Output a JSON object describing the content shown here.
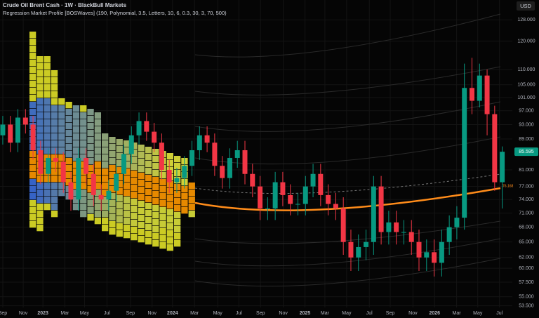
{
  "chart_data": {
    "type": "candlestick",
    "title": "Crude Oil Brent Cash · 1W · BlackBull Markets",
    "subtitle": "Regression Market Profile [BOSWaves] (190, Polynomial, 3.5, Letters, 10, 6, 0.3, 30, 3, 70, 500)",
    "currency": "USD",
    "last_price_label": "85.595",
    "regression_label": "76.168",
    "log_scale": true,
    "up_color": "#089981",
    "down_color": "#f23645",
    "x": [
      0,
      3,
      6,
      9,
      12,
      15,
      18,
      21,
      24,
      27,
      30,
      33,
      36,
      39,
      42,
      45,
      48,
      51,
      54,
      57,
      60,
      63,
      66,
      69,
      72,
      75,
      78,
      81,
      84,
      87,
      90,
      93,
      96,
      99,
      102,
      105,
      108,
      111,
      114,
      117,
      120,
      123,
      126,
      129,
      132,
      135,
      138,
      141,
      144,
      147,
      150,
      153,
      156,
      159,
      162,
      165,
      168,
      171,
      174,
      177,
      180,
      183,
      186,
      189,
      192,
      195,
      198
    ],
    "open": [
      90,
      93,
      88,
      95,
      93,
      86,
      80,
      84,
      83,
      78,
      74,
      84,
      80,
      75,
      74,
      76,
      80,
      85,
      90,
      94,
      91,
      88,
      81,
      78,
      79,
      82,
      86,
      90,
      88,
      82,
      79,
      84,
      86,
      80,
      77,
      72,
      72,
      78,
      75,
      73,
      73,
      77,
      80,
      75,
      73,
      72,
      65,
      62,
      64,
      65,
      77,
      67,
      69,
      67,
      67,
      65,
      62,
      63,
      61,
      65,
      68,
      70,
      104,
      100,
      108,
      96,
      78
    ],
    "high": [
      95.5,
      95.5,
      97.5,
      97.5,
      95.5,
      88.5,
      86.5,
      86.5,
      85.5,
      80.5,
      86.5,
      86.5,
      82.5,
      77.5,
      78.5,
      82.5,
      87.5,
      92.5,
      96.5,
      96.5,
      93.5,
      90.5,
      83.5,
      81.5,
      84.5,
      88.5,
      92.5,
      92.5,
      90.5,
      84.5,
      86.5,
      88.5,
      88.5,
      82.5,
      79.5,
      74.5,
      80.5,
      80.5,
      77.5,
      75.5,
      79.5,
      82.5,
      82.5,
      77.5,
      75.5,
      74.5,
      67.5,
      66.5,
      67.5,
      79.5,
      79.5,
      71.5,
      71.5,
      69.5,
      69.5,
      67.5,
      65.5,
      65.5,
      67.5,
      70.5,
      72.5,
      112,
      114,
      112,
      110,
      98.5,
      87
    ],
    "low": [
      87.5,
      85.5,
      85.5,
      90.5,
      83.5,
      77.5,
      77.5,
      80.5,
      75.5,
      71.5,
      71.5,
      77.5,
      72.5,
      71.5,
      71.5,
      73.5,
      77.5,
      82.5,
      87.5,
      88.5,
      85.5,
      78.5,
      75.5,
      75.5,
      76.5,
      79.5,
      83.5,
      85.5,
      79.5,
      76.5,
      76.5,
      81.5,
      77.5,
      74.5,
      69.5,
      69.5,
      69.5,
      72.5,
      70.5,
      70.5,
      70.5,
      74.5,
      72.5,
      70.5,
      69.5,
      62.5,
      59.5,
      59.5,
      61.5,
      62.5,
      64.5,
      64.5,
      64.5,
      64.5,
      62.5,
      59.5,
      59.5,
      58.5,
      58.5,
      62.5,
      65.5,
      67.5,
      96,
      98,
      90,
      76,
      72
    ],
    "close": [
      93,
      88,
      95,
      93,
      86,
      80,
      84,
      83,
      78,
      74,
      84,
      80,
      75,
      74,
      76,
      80,
      85,
      90,
      94,
      91,
      88,
      81,
      78,
      79,
      82,
      86,
      90,
      88,
      82,
      79,
      84,
      86,
      80,
      77,
      72,
      72,
      78,
      75,
      73,
      73,
      77,
      80,
      75,
      73,
      72,
      65,
      62,
      64,
      65,
      77,
      67,
      69,
      67,
      67,
      65,
      62,
      63,
      61,
      65,
      68,
      70,
      104,
      100,
      108,
      96,
      78,
      85.6
    ],
    "xlim": [
      -1.1,
      202
    ],
    "xticks": [
      {
        "value": 0,
        "label": "Sep"
      },
      {
        "value": 8.1,
        "label": "Nov"
      },
      {
        "value": 15.9,
        "label": "2023"
      },
      {
        "value": 24.6,
        "label": "Mar"
      },
      {
        "value": 32.4,
        "label": "May"
      },
      {
        "value": 41.3,
        "label": "Jul"
      },
      {
        "value": 50.6,
        "label": "Sep"
      },
      {
        "value": 59.2,
        "label": "Nov"
      },
      {
        "value": 67.3,
        "label": "2024"
      },
      {
        "value": 76,
        "label": "Mar"
      },
      {
        "value": 85.2,
        "label": "May"
      },
      {
        "value": 93.6,
        "label": "Jul"
      },
      {
        "value": 102.2,
        "label": "Sep"
      },
      {
        "value": 111.2,
        "label": "Nov"
      },
      {
        "value": 119.8,
        "label": "2025"
      },
      {
        "value": 127.7,
        "label": "Mar"
      },
      {
        "value": 136.3,
        "label": "May"
      },
      {
        "value": 145.3,
        "label": "Jul"
      },
      {
        "value": 153.6,
        "label": "Sep"
      },
      {
        "value": 162.6,
        "label": "Nov"
      },
      {
        "value": 171.2,
        "label": "2026"
      },
      {
        "value": 179.9,
        "label": "Mar"
      },
      {
        "value": 188.3,
        "label": "May"
      },
      {
        "value": 196.9,
        "label": "Jul"
      }
    ],
    "ylim": [
      53,
      136
    ],
    "yticks": [
      {
        "value": 128,
        "label": "128.000"
      },
      {
        "value": 120,
        "label": "120.000"
      },
      {
        "value": 110,
        "label": "110.000"
      },
      {
        "value": 105,
        "label": "105.000"
      },
      {
        "value": 101,
        "label": "101.000"
      },
      {
        "value": 97,
        "label": "97.000"
      },
      {
        "value": 93,
        "label": "93.000"
      },
      {
        "value": 89,
        "label": "89.000"
      },
      {
        "value": 81,
        "label": "81.000"
      },
      {
        "value": 77,
        "label": "77.000"
      },
      {
        "value": 74,
        "label": "74.000"
      },
      {
        "value": 71,
        "label": "71.000"
      },
      {
        "value": 68,
        "label": "68.000"
      },
      {
        "value": 65,
        "label": "65.000"
      },
      {
        "value": 62,
        "label": "62.000"
      },
      {
        "value": 60,
        "label": "60.000"
      },
      {
        "value": 57.5,
        "label": "57.500"
      },
      {
        "value": 55,
        "label": "55.000"
      },
      {
        "value": 53.5,
        "label": "53.500"
      }
    ]
  }
}
